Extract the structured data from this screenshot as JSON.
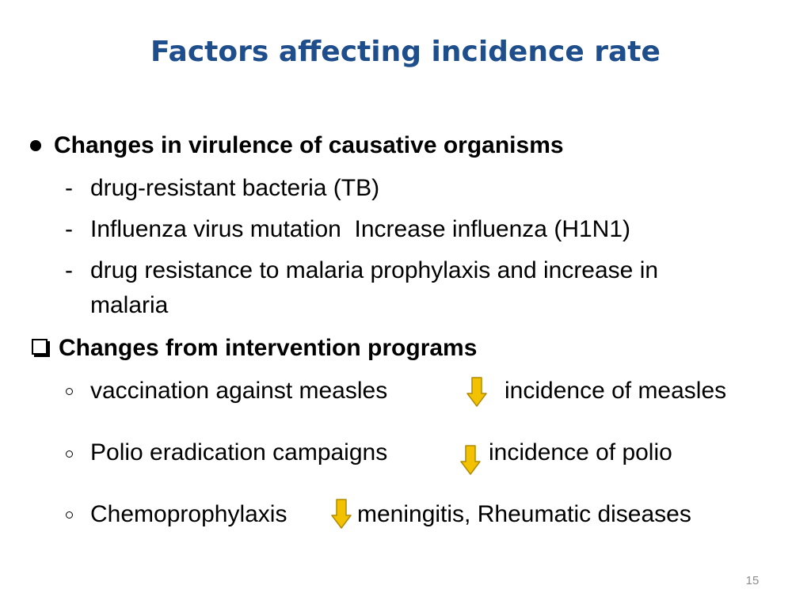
{
  "slide": {
    "title": "Factors affecting incidence rate",
    "page_number": "15",
    "arrow_color": "#f2c200",
    "arrow_outline": "#b08a00",
    "arrow_icon": "down-arrow"
  },
  "sections": [
    {
      "heading": "Changes in virulence of causative organisms",
      "bullet_style": "filled-circle",
      "items": [
        "drug-resistant bacteria (TB)",
        "Influenza virus mutation  Increase influenza (H1N1)",
        "drug resistance to malaria prophylaxis and increase in",
        "malaria"
      ],
      "item_marker": "-"
    },
    {
      "heading": "Changes from intervention programs",
      "bullet_style": "checkbox",
      "items": [
        {
          "before": "vaccination against measles",
          "after": "incidence of measles"
        },
        {
          "before": "Polio eradication campaigns",
          "after": "incidence of polio"
        },
        {
          "before": "Chemoprophylaxis",
          "after": "meningitis, Rheumatic diseases"
        }
      ]
    }
  ]
}
